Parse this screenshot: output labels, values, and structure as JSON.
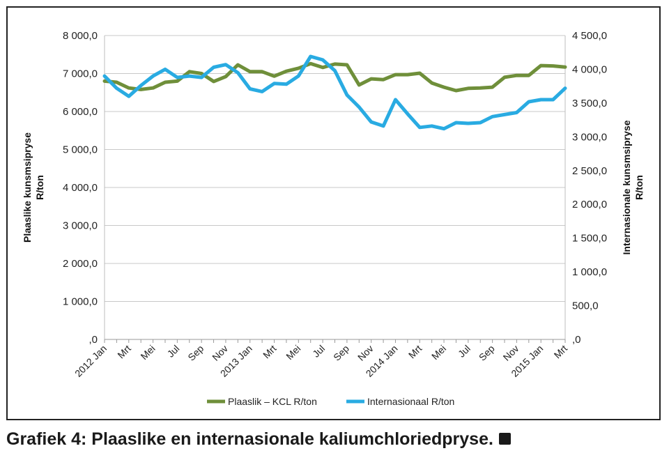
{
  "caption": "Grafiek 4: Plaaslike en internasionale kaliumchloriedpryse.",
  "chart_data": {
    "type": "line",
    "ylabel_left": [
      "Plaaslike kunsmsipryse",
      "R/ton"
    ],
    "ylabel_right": [
      "Internasionale kunsmsipryse",
      "R/ton"
    ],
    "ylim_left": [
      0,
      8000
    ],
    "ylim_right": [
      0,
      4500
    ],
    "yticks_left": [
      "8 000,0",
      "7 000,0",
      "6 000,0",
      "5 000,0",
      "4 000,0",
      "3 000,0",
      "2 000,0",
      "1 000,0",
      ",0"
    ],
    "yticks_right": [
      "4 500,0",
      "4 000,0",
      "3 500,0",
      "3 000,0",
      "2 500,0",
      "2 000,0",
      "1 500,0",
      "1 000,0",
      "500,0",
      ",0"
    ],
    "grid": true,
    "legend_position": "bottom",
    "x_tick_labels": [
      "2012 Jan",
      "Mrt",
      "Mei",
      "Jul",
      "Sep",
      "Nov",
      "2013 Jan",
      "Mrt",
      "Mei",
      "Jul",
      "Sep",
      "Nov",
      "2014 Jan",
      "Mrt",
      "Mei",
      "Jul",
      "Sep",
      "Nov",
      "2015 Jan",
      "Mrt"
    ],
    "x": [
      "2012 Jan",
      "2012 Feb",
      "2012 Mrt",
      "2012 Apr",
      "2012 Mei",
      "2012 Jun",
      "2012 Jul",
      "2012 Aug",
      "2012 Sep",
      "2012 Okt",
      "2012 Nov",
      "2012 Des",
      "2013 Jan",
      "2013 Feb",
      "2013 Mrt",
      "2013 Apr",
      "2013 Mei",
      "2013 Jun",
      "2013 Jul",
      "2013 Aug",
      "2013 Sep",
      "2013 Okt",
      "2013 Nov",
      "2013 Des",
      "2014 Jan",
      "2014 Feb",
      "2014 Mrt",
      "2014 Apr",
      "2014 Mei",
      "2014 Jun",
      "2014 Jul",
      "2014 Aug",
      "2014 Sep",
      "2014 Okt",
      "2014 Nov",
      "2014 Des",
      "2015 Jan",
      "2015 Feb",
      "2015 Mrt"
    ],
    "series": [
      {
        "name": "Plaaslik – KCL R/ton",
        "axis": "left",
        "color": "#6f8f3a",
        "values": [
          6800,
          6770,
          6620,
          6580,
          6620,
          6770,
          6800,
          7050,
          7000,
          6790,
          6920,
          7230,
          7050,
          7050,
          6930,
          7060,
          7140,
          7260,
          7160,
          7250,
          7230,
          6700,
          6860,
          6840,
          6970,
          6970,
          7010,
          6750,
          6640,
          6550,
          6610,
          6620,
          6640,
          6900,
          6950,
          6950,
          7210,
          7200,
          7170
        ]
      },
      {
        "name": "Internasionaal R/ton",
        "axis": "right",
        "color": "#29abe2",
        "values": [
          3900,
          3720,
          3600,
          3760,
          3900,
          4000,
          3880,
          3900,
          3880,
          4030,
          4070,
          3950,
          3710,
          3670,
          3790,
          3780,
          3900,
          4190,
          4140,
          3980,
          3620,
          3440,
          3220,
          3160,
          3550,
          3340,
          3140,
          3160,
          3120,
          3210,
          3200,
          3210,
          3300,
          3330,
          3360,
          3520,
          3550,
          3550,
          3720
        ]
      }
    ]
  }
}
